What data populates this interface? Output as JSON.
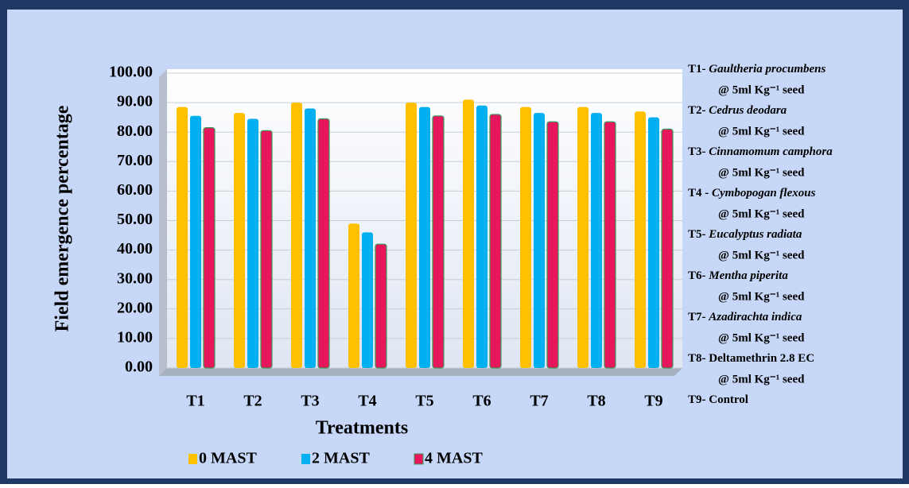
{
  "chart_data": {
    "type": "bar",
    "y_label": "Field emergence percentage",
    "x_label": "Treatments",
    "categories": [
      "T1",
      "T2",
      "T3",
      "T4",
      "T5",
      "T6",
      "T7",
      "T8",
      "T9"
    ],
    "series": [
      {
        "name": "0 MAST",
        "color": "#ffc000",
        "values": [
          88.5,
          86.5,
          90,
          49,
          90,
          91,
          88.5,
          88.5,
          87
        ]
      },
      {
        "name": "2 MAST",
        "color": "#00b0f0",
        "values": [
          85.5,
          84.5,
          88,
          46,
          88.5,
          89,
          86.5,
          86.5,
          85
        ]
      },
      {
        "name": "4 MAST",
        "color": "#e8175d",
        "values": [
          81.5,
          80.5,
          84.5,
          42,
          85.5,
          86,
          83.5,
          83.5,
          81
        ]
      }
    ],
    "ylim": [
      0,
      100
    ],
    "yticks": [
      {
        "value": 0,
        "label": "0.00"
      },
      {
        "value": 10,
        "label": "10.00"
      },
      {
        "value": 20,
        "label": "20.00"
      },
      {
        "value": 30,
        "label": "30.00"
      },
      {
        "value": 40,
        "label": "40.00"
      },
      {
        "value": 50,
        "label": "50.00"
      },
      {
        "value": 60,
        "label": "60.00"
      },
      {
        "value": 70,
        "label": "70.00"
      },
      {
        "value": 80,
        "label": "80.00"
      },
      {
        "value": 90,
        "label": "90.00"
      },
      {
        "value": 100,
        "label": "100.00"
      }
    ],
    "grid": true,
    "legend": "bottom",
    "notes": [
      {
        "code": "T1-",
        "name": "Gaultheria procumbens",
        "dose": "@ 5ml Kg⁻¹ seed"
      },
      {
        "code": "T2-",
        "name": "Cedrus deodara",
        "dose": "@ 5ml Kg⁻¹ seed"
      },
      {
        "code": "T3-",
        "name": "Cinnamomum camphora",
        "dose": "@ 5ml Kg⁻¹ seed"
      },
      {
        "code": "T4 -",
        "name": "Cymbopogan flexous",
        "dose": "@ 5ml Kg⁻¹ seed"
      },
      {
        "code": "T5-",
        "name": "Eucalyptus radiata",
        "dose": "@ 5ml Kg⁻¹ seed"
      },
      {
        "code": "T6-",
        "name": "Mentha piperita",
        "dose": "@ 5ml Kg⁻¹ seed"
      },
      {
        "code": "T7-",
        "name": "Azadirachta indica",
        "dose": "@ 5ml Kg⁻¹ seed"
      },
      {
        "code": "T8-",
        "name": "Deltamethrin 2.8 EC",
        "dose": "@ 5ml Kg⁻¹ seed"
      },
      {
        "code": "T9-",
        "name": "Control"
      }
    ]
  }
}
